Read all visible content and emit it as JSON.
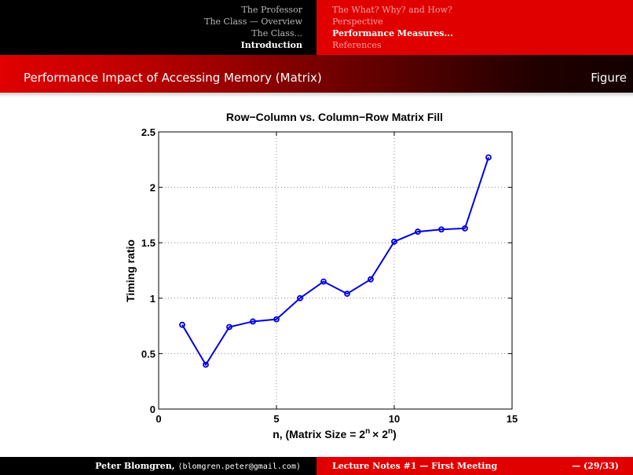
{
  "nav": {
    "left": [
      {
        "label": "The Professor",
        "active": false
      },
      {
        "label": "The Class — Overview",
        "active": false
      },
      {
        "label": "The Class...",
        "active": false
      },
      {
        "label": "Introduction",
        "active": true
      }
    ],
    "right": [
      {
        "label": "The What? Why? and How?",
        "active": false
      },
      {
        "label": "Perspective",
        "active": false
      },
      {
        "label": "Performance Measures...",
        "active": true
      },
      {
        "label": "References",
        "active": false
      }
    ]
  },
  "frame": {
    "title": "Performance Impact of Accessing Memory (Matrix)",
    "label": "Figure"
  },
  "footer": {
    "author": "Peter Blomgren,",
    "email": "⟨blomgren.peter@gmail.com⟩",
    "lecture": "Lecture Notes #1 — First Meeting",
    "page": "— (29/33)"
  },
  "chart_data": {
    "type": "line",
    "title": "Row−Column vs. Column−Row Matrix Fill",
    "xlabel": "n, (Matrix Size = 2",
    "xlabel_sup1": "n",
    "xlabel_times": "× 2",
    "xlabel_sup2": "n",
    "xlabel_end": ")",
    "ylabel": "Timing ratio",
    "xlim": [
      0,
      15
    ],
    "ylim": [
      0,
      2.5
    ],
    "xticks": [
      0,
      5,
      10,
      15
    ],
    "yticks": [
      0,
      0.5,
      1,
      1.5,
      2,
      2.5
    ],
    "grid": true,
    "color": "#0000e0",
    "series": [
      {
        "x": [
          1,
          2,
          3,
          4,
          5,
          6,
          7,
          8,
          9,
          10,
          11,
          12,
          13,
          14
        ],
        "y": [
          0.76,
          0.4,
          0.74,
          0.79,
          0.81,
          1.0,
          1.15,
          1.04,
          1.17,
          1.51,
          1.6,
          1.62,
          1.63,
          2.27
        ]
      }
    ]
  }
}
